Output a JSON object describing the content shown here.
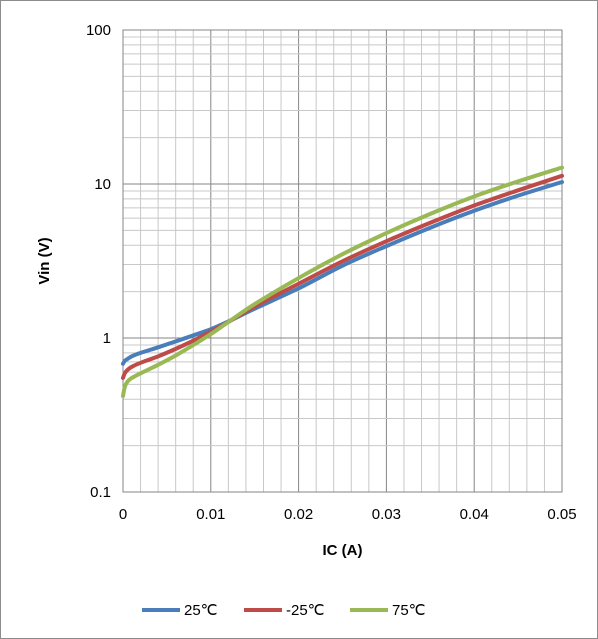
{
  "chart_data": {
    "type": "line",
    "title": "",
    "xlabel": "IC (A)",
    "ylabel": "Vin (V)",
    "xlim": [
      0,
      0.05
    ],
    "ylim": [
      0.1,
      100
    ],
    "yscale": "log",
    "grid": true,
    "legend_position": "bottom",
    "x_ticks": [
      "0",
      "0.01",
      "0.02",
      "0.03",
      "0.04",
      "0.05"
    ],
    "y_ticks": [
      "0.1",
      "1",
      "10",
      "100"
    ],
    "series": [
      {
        "name": "25℃",
        "color": "#4a7ebb",
        "x": [
          0,
          0.0002,
          0.0005,
          0.001,
          0.002,
          0.004,
          0.006,
          0.008,
          0.01,
          0.012,
          0.015,
          0.02,
          0.025,
          0.03,
          0.035,
          0.04,
          0.045,
          0.05
        ],
        "y": [
          0.68,
          0.71,
          0.73,
          0.76,
          0.8,
          0.87,
          0.95,
          1.04,
          1.14,
          1.28,
          1.55,
          2.1,
          2.95,
          3.95,
          5.2,
          6.7,
          8.4,
          10.3
        ]
      },
      {
        "name": "-25℃",
        "color": "#be4b48",
        "x": [
          0,
          0.0002,
          0.0005,
          0.001,
          0.002,
          0.004,
          0.006,
          0.008,
          0.01,
          0.012,
          0.015,
          0.02,
          0.025,
          0.03,
          0.035,
          0.04,
          0.045,
          0.05
        ],
        "y": [
          0.55,
          0.59,
          0.62,
          0.65,
          0.69,
          0.76,
          0.85,
          0.96,
          1.1,
          1.27,
          1.6,
          2.25,
          3.15,
          4.25,
          5.6,
          7.25,
          9.1,
          11.3
        ]
      },
      {
        "name": "75℃",
        "color": "#98b954",
        "x": [
          0,
          0.0002,
          0.0005,
          0.001,
          0.002,
          0.004,
          0.006,
          0.008,
          0.01,
          0.012,
          0.015,
          0.02,
          0.025,
          0.03,
          0.035,
          0.04,
          0.045,
          0.05
        ],
        "y": [
          0.42,
          0.48,
          0.52,
          0.55,
          0.59,
          0.67,
          0.77,
          0.9,
          1.06,
          1.27,
          1.66,
          2.45,
          3.5,
          4.8,
          6.4,
          8.3,
          10.4,
          12.8
        ]
      }
    ]
  }
}
